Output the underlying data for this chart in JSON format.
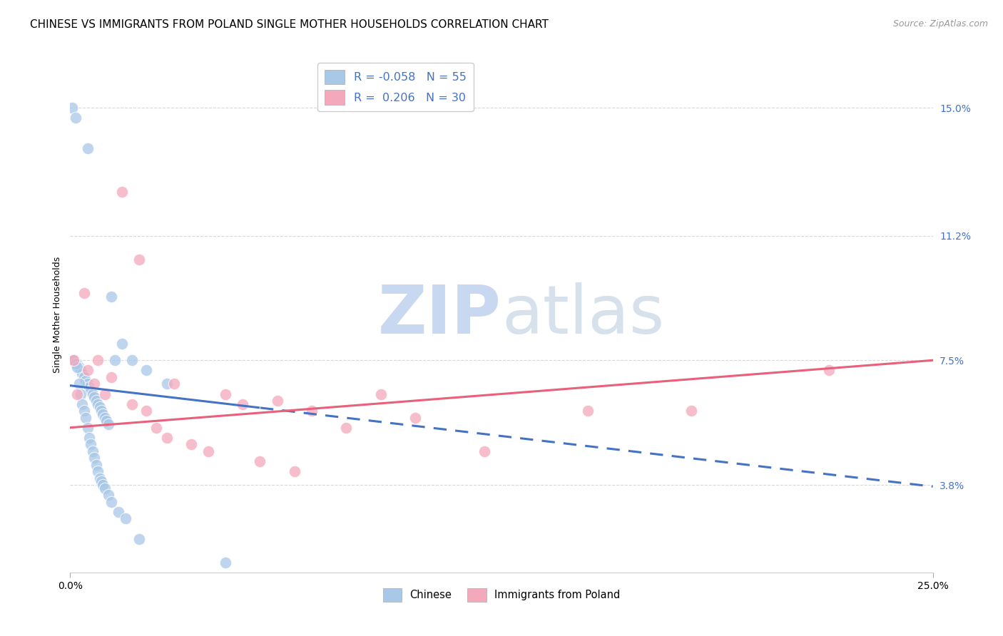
{
  "title": "CHINESE VS IMMIGRANTS FROM POLAND SINGLE MOTHER HOUSEHOLDS CORRELATION CHART",
  "source": "Source: ZipAtlas.com",
  "ylabel": "Single Mother Households",
  "ytick_labels": [
    "3.8%",
    "7.5%",
    "11.2%",
    "15.0%"
  ],
  "ytick_values": [
    3.8,
    7.5,
    11.2,
    15.0
  ],
  "xlim": [
    0.0,
    25.0
  ],
  "ylim": [
    1.2,
    16.5
  ],
  "chinese_x": [
    0.05,
    0.15,
    0.5,
    0.08,
    0.12,
    0.2,
    0.25,
    0.3,
    0.35,
    0.4,
    0.45,
    0.5,
    0.55,
    0.6,
    0.65,
    0.7,
    0.75,
    0.8,
    0.85,
    0.9,
    0.95,
    1.0,
    1.05,
    1.1,
    1.2,
    1.3,
    1.5,
    1.8,
    2.2,
    2.8,
    0.1,
    0.15,
    0.2,
    0.25,
    0.3,
    0.35,
    0.4,
    0.45,
    0.5,
    0.55,
    0.6,
    0.65,
    0.7,
    0.75,
    0.8,
    0.85,
    0.9,
    0.95,
    1.0,
    1.1,
    1.2,
    1.4,
    1.6,
    2.0,
    4.5
  ],
  "chinese_y": [
    15.0,
    14.7,
    13.8,
    7.5,
    7.5,
    7.4,
    7.3,
    7.2,
    7.1,
    7.0,
    6.9,
    6.8,
    6.7,
    6.6,
    6.5,
    6.4,
    6.3,
    6.2,
    6.1,
    6.0,
    5.9,
    5.8,
    5.7,
    5.6,
    9.4,
    7.5,
    8.0,
    7.5,
    7.2,
    6.8,
    7.5,
    7.4,
    7.3,
    6.8,
    6.5,
    6.2,
    6.0,
    5.8,
    5.5,
    5.2,
    5.0,
    4.8,
    4.6,
    4.4,
    4.2,
    4.0,
    3.9,
    3.8,
    3.7,
    3.5,
    3.3,
    3.0,
    2.8,
    2.2,
    1.5
  ],
  "poland_x": [
    0.1,
    0.2,
    0.4,
    0.5,
    0.7,
    0.8,
    1.0,
    1.2,
    1.5,
    1.8,
    2.0,
    2.2,
    2.5,
    2.8,
    3.0,
    3.5,
    4.0,
    4.5,
    5.0,
    5.5,
    6.0,
    6.5,
    7.0,
    8.0,
    9.0,
    10.0,
    12.0,
    15.0,
    18.0,
    22.0
  ],
  "poland_y": [
    7.5,
    6.5,
    9.5,
    7.2,
    6.8,
    7.5,
    6.5,
    7.0,
    12.5,
    6.2,
    10.5,
    6.0,
    5.5,
    5.2,
    6.8,
    5.0,
    4.8,
    6.5,
    6.2,
    4.5,
    6.3,
    4.2,
    6.0,
    5.5,
    6.5,
    5.8,
    4.8,
    6.0,
    6.0,
    7.2
  ],
  "chinese_line_color": "#4472c4",
  "poland_line_color": "#e8607a",
  "chinese_scatter_color": "#a8c8e8",
  "poland_scatter_color": "#f4a8bc",
  "watermark_zip": "ZIP",
  "watermark_atlas": "atlas",
  "watermark_color": "#c8d8f0",
  "grid_color": "#d8d8d8",
  "title_fontsize": 11,
  "axis_label_fontsize": 9,
  "tick_fontsize": 10,
  "tick_color": "#4472c4",
  "legend_r1": "R = -0.058",
  "legend_n1": "N = 55",
  "legend_r2": "R =  0.206",
  "legend_n2": "N = 30"
}
